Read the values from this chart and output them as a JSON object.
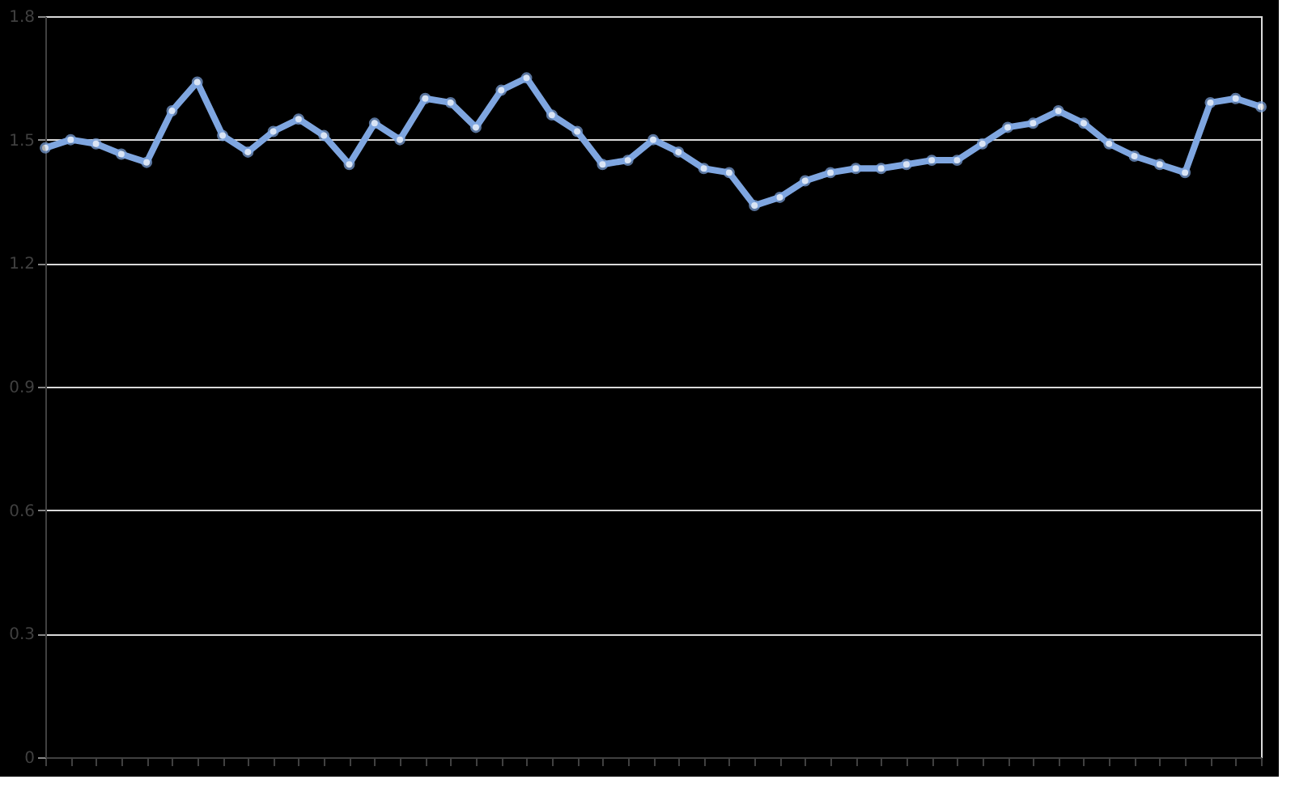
{
  "chart_data": {
    "type": "line",
    "categories": [
      null,
      null,
      null,
      null,
      null,
      null,
      null,
      null,
      null,
      null,
      null,
      null,
      null,
      null,
      null,
      null,
      null,
      null,
      null,
      null,
      null,
      null,
      null,
      null,
      null,
      null,
      null,
      null,
      null,
      null,
      null,
      null,
      null,
      null,
      null,
      null,
      null,
      null,
      null,
      null,
      null,
      null,
      null,
      null,
      null,
      null,
      null,
      null,
      null
    ],
    "series": [
      {
        "color": "#7fa6e0",
        "values": [
          1.48,
          1.5,
          1.49,
          1.465,
          1.445,
          1.57,
          1.64,
          1.51,
          1.47,
          1.52,
          1.55,
          1.51,
          1.44,
          1.54,
          1.5,
          1.6,
          1.59,
          1.53,
          1.62,
          1.65,
          1.56,
          1.52,
          1.44,
          1.45,
          1.5,
          1.47,
          1.43,
          1.42,
          1.34,
          1.36,
          1.4,
          1.42,
          1.43,
          1.43,
          1.44,
          1.45,
          1.45,
          1.49,
          1.53,
          1.54,
          1.57,
          1.54,
          1.49,
          1.46,
          1.44,
          1.42,
          1.59,
          1.6,
          1.58
        ]
      }
    ],
    "ylim": [
      0,
      1.8
    ],
    "yticks": [
      0,
      0.3,
      0.6,
      0.9,
      1.2,
      1.5,
      1.8
    ],
    "grid": "y",
    "marker": "circle",
    "line_style": "solid",
    "legend": false
  }
}
